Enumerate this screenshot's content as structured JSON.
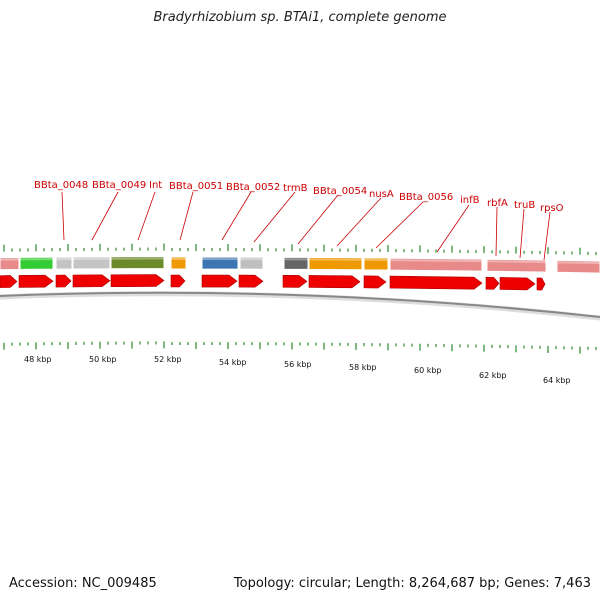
{
  "title": "Bradyrhizobium sp. BTAi1, complete genome",
  "footer": {
    "accession": "Accession: NC_009485",
    "topology": "Topology: circular",
    "length": "Length: 8,264,687 bp",
    "genes": "Genes: 7,463"
  },
  "colors": {
    "label": "#cc0000",
    "arrow": "#ee0000",
    "tick": "#2a8a2a",
    "backbone": "#888888"
  },
  "gene_labels": [
    "BBta_0048",
    "BBta_0049",
    "Int",
    "BBta_0051",
    "BBta_0052",
    "trmB",
    "BBta_0054",
    "nusA",
    "BBta_0056",
    "infB",
    "rbfA",
    "truB",
    "rpsO"
  ],
  "scale_labels": [
    "48 kbp",
    "50 kbp",
    "52 kbp",
    "54 kbp",
    "56 kbp",
    "58 kbp",
    "60 kbp",
    "62 kbp",
    "64 kbp"
  ],
  "feature_colors": [
    "#e88a8a",
    "#33cc33",
    "#c4c4c4",
    "#6b8a2a",
    "#ee9900",
    "#3d75b0",
    "#bfbfbf",
    "#666666",
    "#ee9900",
    "#e88a8a"
  ]
}
